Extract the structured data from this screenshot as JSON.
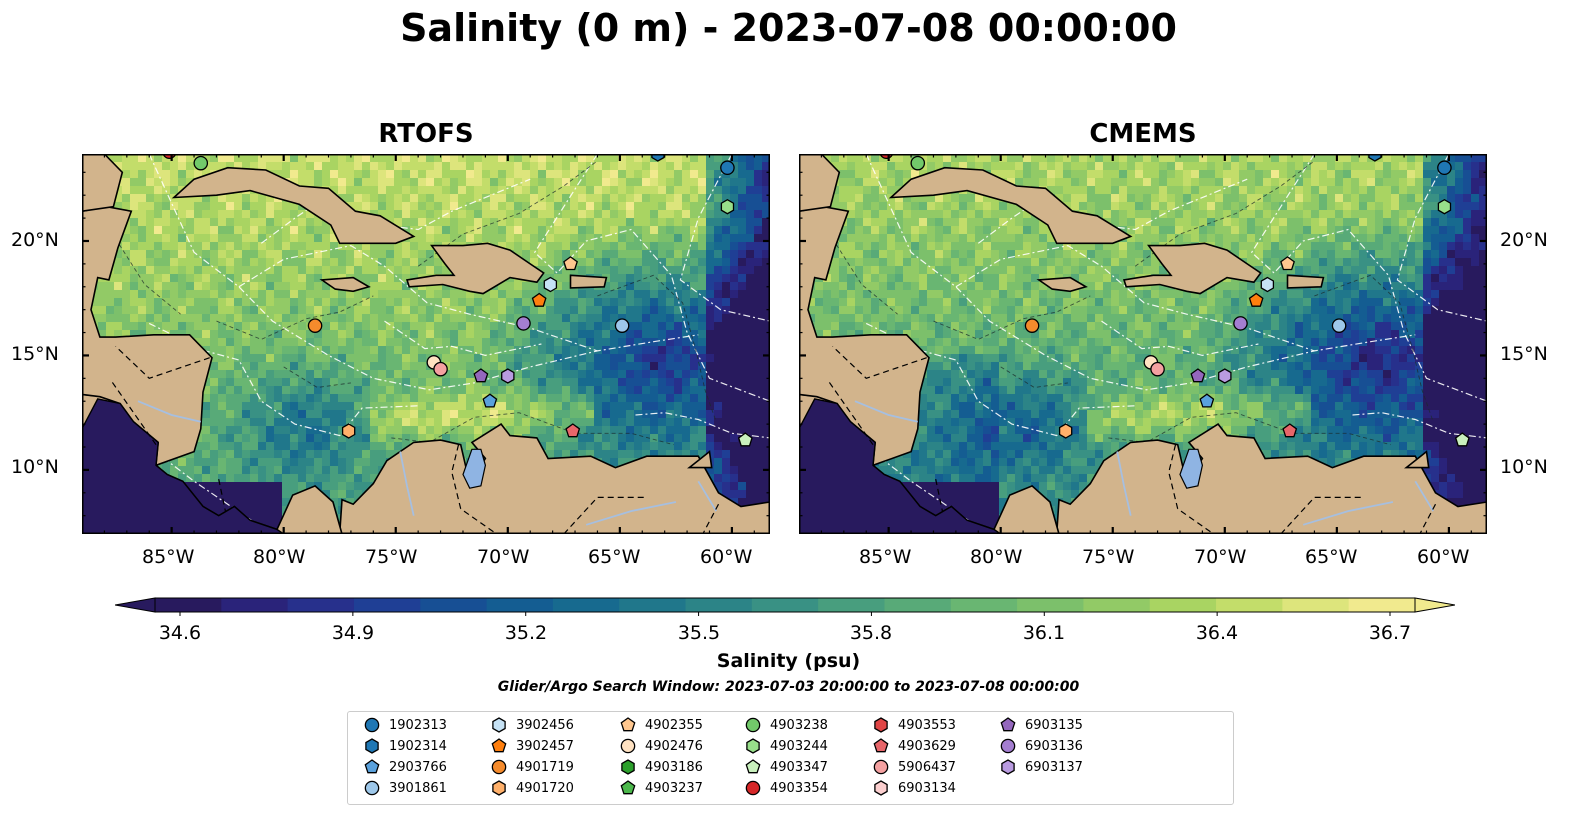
{
  "title": "Salinity (0 m) - 2023-07-08 00:00:00",
  "panels": [
    {
      "name": "RTOFS"
    },
    {
      "name": "CMEMS"
    }
  ],
  "lat_labels": [
    "20°N",
    "15°N",
    "10°N"
  ],
  "lon_labels": [
    "85°W",
    "80°W",
    "75°W",
    "70°W",
    "65°W",
    "60°W"
  ],
  "colorbar": {
    "label": "Salinity (psu)",
    "ticks": [
      "34.6",
      "34.9",
      "35.2",
      "35.5",
      "35.8",
      "36.1",
      "36.4",
      "36.7"
    ],
    "range": [
      34.6,
      36.7
    ],
    "colors": [
      "#281a5e",
      "#2a237a",
      "#27308c",
      "#1f3f95",
      "#174f94",
      "#145d92",
      "#176a8f",
      "#20778b",
      "#2c8487",
      "#399184",
      "#489e7e",
      "#58aa78",
      "#69b672",
      "#7cc06b",
      "#92ca66",
      "#a9d462",
      "#c3dd6a",
      "#dde57c",
      "#f1ea8e"
    ]
  },
  "search_window": "Glider/Argo Search Window: 2023-07-03 20:00:00 to 2023-07-08 00:00:00",
  "legend": [
    {
      "id": "1902313",
      "color": "#1f77b4",
      "shape": "circle"
    },
    {
      "id": "1902314",
      "color": "#1f77b4",
      "shape": "hexagon"
    },
    {
      "id": "2903766",
      "color": "#5aa1dc",
      "shape": "pentagon"
    },
    {
      "id": "3901861",
      "color": "#9ec8ea",
      "shape": "circle"
    },
    {
      "id": "3902456",
      "color": "#c6e2f5",
      "shape": "hexagon"
    },
    {
      "id": "3902457",
      "color": "#ff7f0e",
      "shape": "pentagon"
    },
    {
      "id": "4901719",
      "color": "#f58b2c",
      "shape": "circle"
    },
    {
      "id": "4901720",
      "color": "#ffb06a",
      "shape": "hexagon"
    },
    {
      "id": "4902355",
      "color": "#ffc78f",
      "shape": "pentagon"
    },
    {
      "id": "4902476",
      "color": "#ffe2c2",
      "shape": "circle"
    },
    {
      "id": "4903186",
      "color": "#2ca02c",
      "shape": "hexagon"
    },
    {
      "id": "4903237",
      "color": "#4cb84c",
      "shape": "pentagon"
    },
    {
      "id": "4903238",
      "color": "#72c96a",
      "shape": "circle"
    },
    {
      "id": "4903244",
      "color": "#98df8a",
      "shape": "hexagon"
    },
    {
      "id": "4903347",
      "color": "#c9f0bd",
      "shape": "pentagon"
    },
    {
      "id": "4903354",
      "color": "#d62728",
      "shape": "circle"
    },
    {
      "id": "4903553",
      "color": "#e04545",
      "shape": "hexagon"
    },
    {
      "id": "4903629",
      "color": "#e8666a",
      "shape": "pentagon"
    },
    {
      "id": "5906437",
      "color": "#f4a1a1",
      "shape": "circle"
    },
    {
      "id": "6903134",
      "color": "#fbcfcf",
      "shape": "hexagon"
    },
    {
      "id": "6903135",
      "color": "#9467bd",
      "shape": "pentagon"
    },
    {
      "id": "6903136",
      "color": "#a47ed0",
      "shape": "circle"
    },
    {
      "id": "6903137",
      "color": "#b99be0",
      "shape": "hexagon"
    }
  ],
  "map_colors": {
    "land": "#d2b48c",
    "lake": "#8fb4e3",
    "river": "#a6bfe0",
    "deep_ocean": "#281a5e"
  },
  "floats_on_map": [
    {
      "id": "1902313",
      "lon": -60.2,
      "lat": 23.2
    },
    {
      "id": "4903244",
      "lon": -60.2,
      "lat": 21.5
    },
    {
      "id": "4903238",
      "lon": -83.7,
      "lat": 23.4
    },
    {
      "id": "4903354",
      "lon": -85.1,
      "lat": 23.9
    },
    {
      "id": "1902314",
      "lon": -63.3,
      "lat": 23.8
    },
    {
      "id": "4902355",
      "lon": -67.2,
      "lat": 19.0
    },
    {
      "id": "3902456",
      "lon": -68.1,
      "lat": 18.1
    },
    {
      "id": "3902457",
      "lon": -68.6,
      "lat": 17.4
    },
    {
      "id": "6903136",
      "lon": -69.3,
      "lat": 16.4
    },
    {
      "id": "3901861",
      "lon": -64.9,
      "lat": 16.3
    },
    {
      "id": "4901719",
      "lon": -78.6,
      "lat": 16.3
    },
    {
      "id": "4902476",
      "lon": -73.3,
      "lat": 14.7
    },
    {
      "id": "5906437",
      "lon": -73.0,
      "lat": 14.4
    },
    {
      "id": "6903135",
      "lon": -71.2,
      "lat": 14.1
    },
    {
      "id": "6903137",
      "lon": -70.0,
      "lat": 14.1
    },
    {
      "id": "2903766",
      "lon": -70.8,
      "lat": 13.0
    },
    {
      "id": "4901720",
      "lon": -77.1,
      "lat": 11.7
    },
    {
      "id": "4903629",
      "lon": -67.1,
      "lat": 11.7
    },
    {
      "id": "4903347",
      "lon": -59.4,
      "lat": 11.3
    }
  ]
}
